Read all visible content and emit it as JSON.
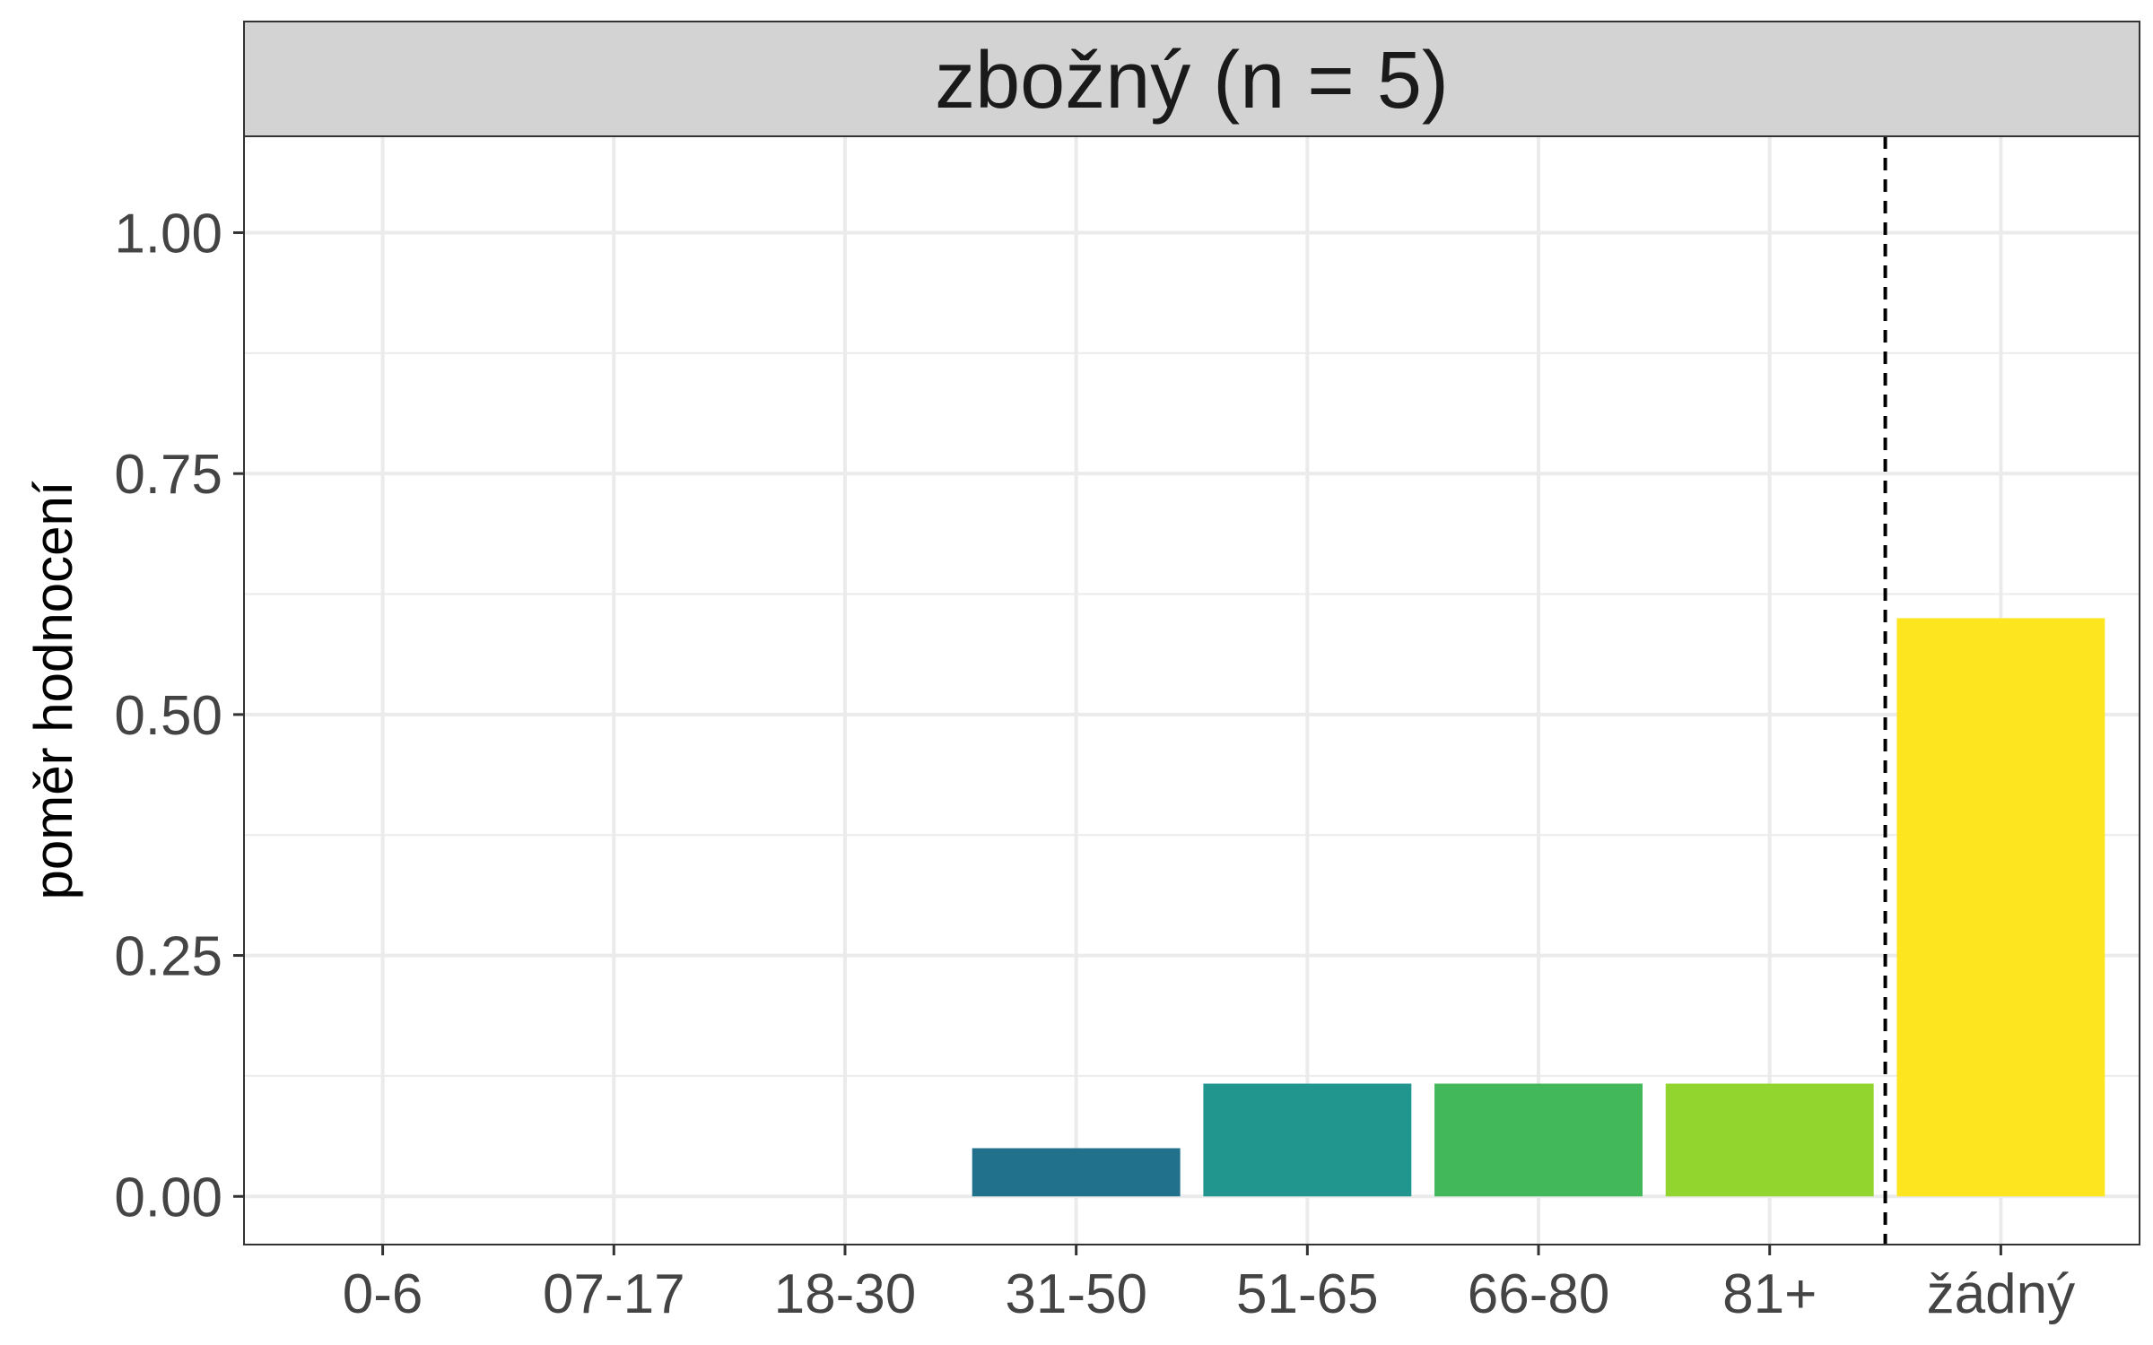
{
  "chart_data": {
    "type": "bar",
    "facet_title": "zbožný (n = 5)",
    "categories": [
      "0-6",
      "07-17",
      "18-30",
      "31-50",
      "51-65",
      "66-80",
      "81+",
      "žádný"
    ],
    "values": [
      0,
      0,
      0,
      0.05,
      0.117,
      0.117,
      0.117,
      0.6
    ],
    "colors": [
      "#440154",
      "#46327e",
      "#365c8d",
      "#21708c",
      "#21968f",
      "#42b85a",
      "#92d52f",
      "#fde51f"
    ],
    "xlabel": "",
    "ylabel": "poměr hodnocení",
    "ylim": [
      -0.05,
      1.1
    ],
    "yticks": [
      0,
      0.25,
      0.5,
      0.75,
      1
    ],
    "ytick_labels": [
      "0.00",
      "0.25",
      "0.50",
      "0.75",
      "1.00"
    ],
    "reference_line": {
      "between": [
        "81+",
        "žádný"
      ],
      "style": "dashed"
    },
    "grid": true,
    "legend": "none",
    "strip_background": "#d3d3d3",
    "grid_color": "#ebebeb"
  }
}
